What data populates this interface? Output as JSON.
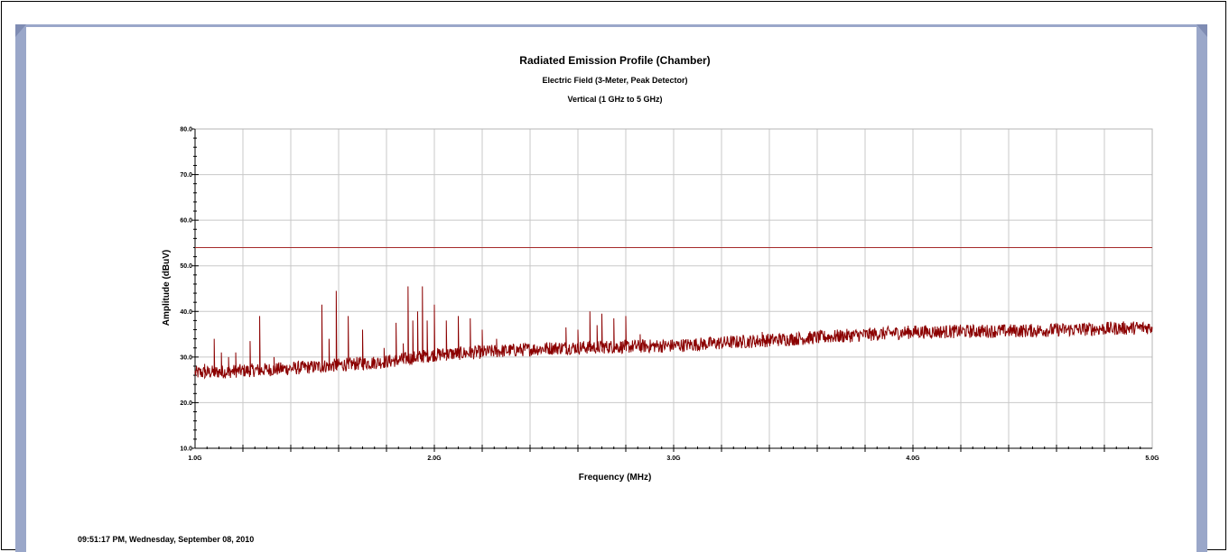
{
  "timestamp": "09:51:17 PM, Wednesday, September 08, 2010",
  "colors": {
    "trace": "#8b0000",
    "limit": "#a52a2a",
    "grid": "#c8c8c8",
    "frame": "#9aa7c9"
  },
  "chart_data": {
    "type": "line",
    "title": "Radiated Emission Profile (Chamber)",
    "subtitle": "Electric Field (3-Meter, Peak Detector)",
    "subtitle2": "Vertical (1 GHz to 5 GHz)",
    "xlabel": "Frequency (MHz)",
    "ylabel": "Amplitude (dBuV)",
    "xlim": [
      1000,
      5000
    ],
    "ylim": [
      10,
      80
    ],
    "x_ticks": [
      {
        "value": 1000,
        "label": "1.0G"
      },
      {
        "value": 2000,
        "label": "2.0G"
      },
      {
        "value": 3000,
        "label": "3.0G"
      },
      {
        "value": 4000,
        "label": "4.0G"
      },
      {
        "value": 5000,
        "label": "5.0G"
      }
    ],
    "y_ticks": [
      {
        "value": 10,
        "label": "10.0"
      },
      {
        "value": 20,
        "label": "20.0"
      },
      {
        "value": 30,
        "label": "30.0"
      },
      {
        "value": 40,
        "label": "40.0"
      },
      {
        "value": 50,
        "label": "50.0"
      },
      {
        "value": 60,
        "label": "60.0"
      },
      {
        "value": 70,
        "label": "70.0"
      },
      {
        "value": 80,
        "label": "80.0"
      }
    ],
    "grid": true,
    "limit_line": 54,
    "noise_floor": [
      [
        1000,
        26.5
      ],
      [
        1400,
        27.5
      ],
      [
        1800,
        29
      ],
      [
        2000,
        30.5
      ],
      [
        2500,
        32
      ],
      [
        3000,
        32.5
      ],
      [
        3500,
        34
      ],
      [
        4000,
        35.5
      ],
      [
        4500,
        35.8
      ],
      [
        5000,
        36.5
      ]
    ],
    "noise_amplitude": 1.5,
    "peaks": [
      [
        1040,
        28.5
      ],
      [
        1080,
        34
      ],
      [
        1110,
        31
      ],
      [
        1140,
        30
      ],
      [
        1170,
        31
      ],
      [
        1230,
        33.5
      ],
      [
        1270,
        39
      ],
      [
        1330,
        30
      ],
      [
        1530,
        41.5
      ],
      [
        1560,
        34
      ],
      [
        1590,
        44.5
      ],
      [
        1640,
        39
      ],
      [
        1700,
        36
      ],
      [
        1790,
        32
      ],
      [
        1840,
        37.5
      ],
      [
        1870,
        33
      ],
      [
        1890,
        45.5
      ],
      [
        1910,
        38
      ],
      [
        1930,
        40
      ],
      [
        1950,
        45.5
      ],
      [
        1970,
        38
      ],
      [
        2000,
        41.5
      ],
      [
        2050,
        38
      ],
      [
        2100,
        39
      ],
      [
        2150,
        38.5
      ],
      [
        2200,
        36
      ],
      [
        2260,
        34
      ],
      [
        2550,
        36.5
      ],
      [
        2600,
        36
      ],
      [
        2650,
        40
      ],
      [
        2680,
        37
      ],
      [
        2700,
        39.5
      ],
      [
        2750,
        38.5
      ],
      [
        2800,
        39
      ],
      [
        2860,
        35
      ],
      [
        3370,
        35.5
      ]
    ]
  }
}
